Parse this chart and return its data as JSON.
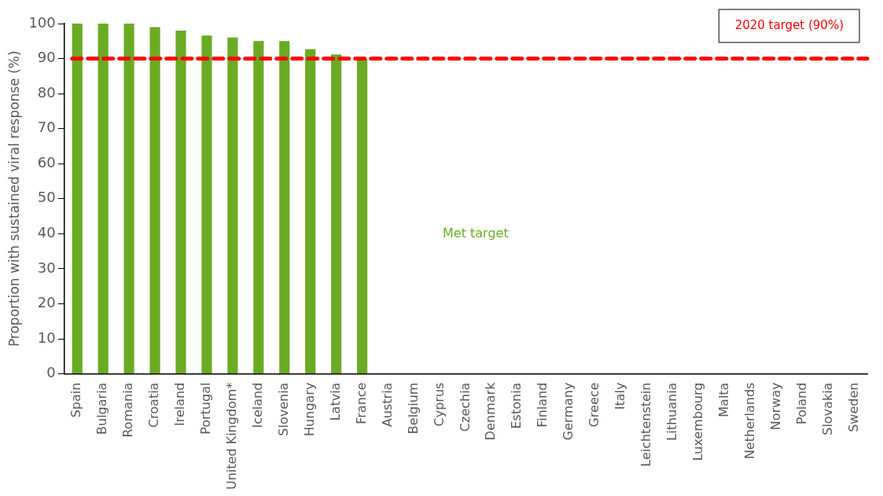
{
  "chart_data": {
    "type": "bar",
    "ylabel": "Proportion with sustained viral response (%)",
    "categories": [
      "Spain",
      "Bulgaria",
      "Romania",
      "Croatia",
      "Ireland",
      "Portugal",
      "United Kingdom*",
      "Iceland",
      "Slovenia",
      "Hungary",
      "Latvia",
      "France",
      "Austria",
      "Belgium",
      "Cyprus",
      "Czechia",
      "Denmark",
      "Estonia",
      "Finland",
      "Germany",
      "Greece",
      "Italy",
      "Leichtenstein",
      "Lithuania",
      "Luxembourg",
      "Malta",
      "Netherlands",
      "Norway",
      "Poland",
      "Slovakia",
      "Sweden"
    ],
    "values": [
      100,
      100,
      100,
      99,
      98,
      96.6,
      96,
      95,
      95,
      92.7,
      91.2,
      90,
      null,
      null,
      null,
      null,
      null,
      null,
      null,
      null,
      null,
      null,
      null,
      null,
      null,
      null,
      null,
      null,
      null,
      null,
      null
    ],
    "color": "#6aab23",
    "ylim": [
      0,
      100
    ],
    "yticks": [
      0,
      10,
      20,
      30,
      40,
      50,
      60,
      70,
      80,
      90,
      100
    ],
    "ref_lines": [
      {
        "axis": "y",
        "value": 90,
        "label": "2020 target (90%)",
        "color": "#ff0000",
        "line_style": "dashed"
      }
    ],
    "annotations": [
      "Met target"
    ],
    "grid": false,
    "legend": false
  }
}
